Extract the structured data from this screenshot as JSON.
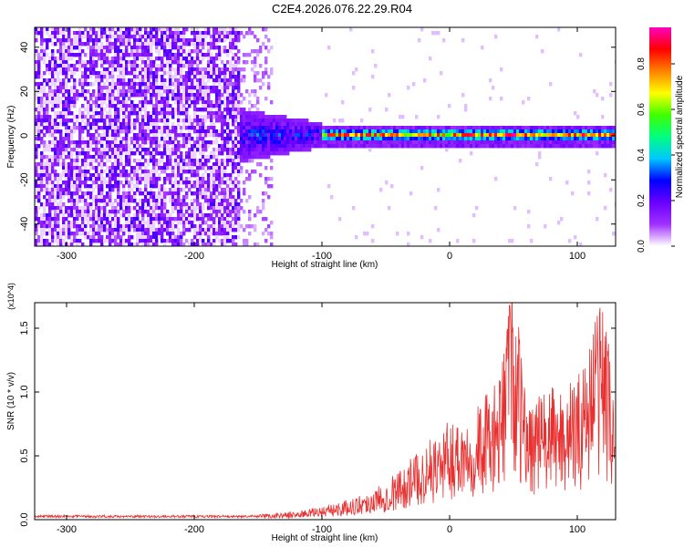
{
  "title": "C2E4.2026.076.22.29.R04",
  "chart_data": [
    {
      "type": "heatmap",
      "xlabel": "Height of straight line (km)",
      "ylabel": "Frequency (Hz)",
      "xlim": [
        -325,
        130
      ],
      "ylim": [
        -50,
        49
      ],
      "xticks": [
        -300,
        -200,
        -100,
        0,
        100
      ],
      "xtick_labels": [
        "-300",
        "-200",
        "-100",
        "0",
        "100"
      ],
      "yticks": [
        -40,
        -20,
        0,
        20,
        40
      ],
      "ytick_labels": [
        "-40",
        "-20",
        "0",
        "20",
        "40"
      ],
      "colorbar": {
        "label": "Normalized spectral amplitude",
        "range": [
          0,
          0.96
        ],
        "ticks": [
          0.0,
          0.2,
          0.4,
          0.6,
          0.8
        ],
        "tick_labels": [
          "0.0",
          "0.2",
          "0.4",
          "0.6",
          "0.8"
        ],
        "colormap": [
          "#ffffff",
          "#a030ff",
          "#6a00ff",
          "#0000ff",
          "#00c8ff",
          "#00ff80",
          "#40ff00",
          "#ffff00",
          "#ff8000",
          "#ff0000",
          "#ff00c0"
        ]
      },
      "regions": [
        {
          "x": [
            -325,
            -165
          ],
          "freq": [
            -50,
            49
          ],
          "amplitude": 0.1,
          "description": "broadband noise"
        },
        {
          "x": [
            -165,
            -100
          ],
          "freq": [
            -10,
            12
          ],
          "amplitude": 0.25
        },
        {
          "x": [
            -100,
            130
          ],
          "freq": [
            -2,
            3
          ],
          "amplitude": 0.9
        }
      ]
    },
    {
      "type": "line",
      "xlabel": "Height of straight line (km)",
      "ylabel": "SNR (10 * v/v)",
      "y_multiplier": "(x10^4)",
      "xlim": [
        -325,
        130
      ],
      "ylim": [
        0,
        1.7
      ],
      "xticks": [
        -300,
        -200,
        -100,
        0,
        100
      ],
      "xtick_labels": [
        "-300",
        "-200",
        "-100",
        "0",
        "100"
      ],
      "yticks": [
        0.0,
        0.5,
        1.0,
        1.5
      ],
      "ytick_labels": [
        "0.0",
        "0.5",
        "1.0",
        "1.5"
      ],
      "color": "#e83030",
      "series": [
        {
          "x": [
            -325,
            -300,
            -250,
            -200,
            -150,
            -120,
            -100,
            -80,
            -60,
            -40,
            -20,
            0,
            20,
            40,
            47,
            60,
            80,
            100,
            120,
            130
          ],
          "y": [
            0.02,
            0.02,
            0.02,
            0.02,
            0.03,
            0.05,
            0.08,
            0.12,
            0.18,
            0.3,
            0.45,
            0.6,
            0.7,
            0.85,
            1.65,
            0.75,
            0.8,
            0.85,
            1.45,
            0.6
          ]
        }
      ]
    }
  ]
}
